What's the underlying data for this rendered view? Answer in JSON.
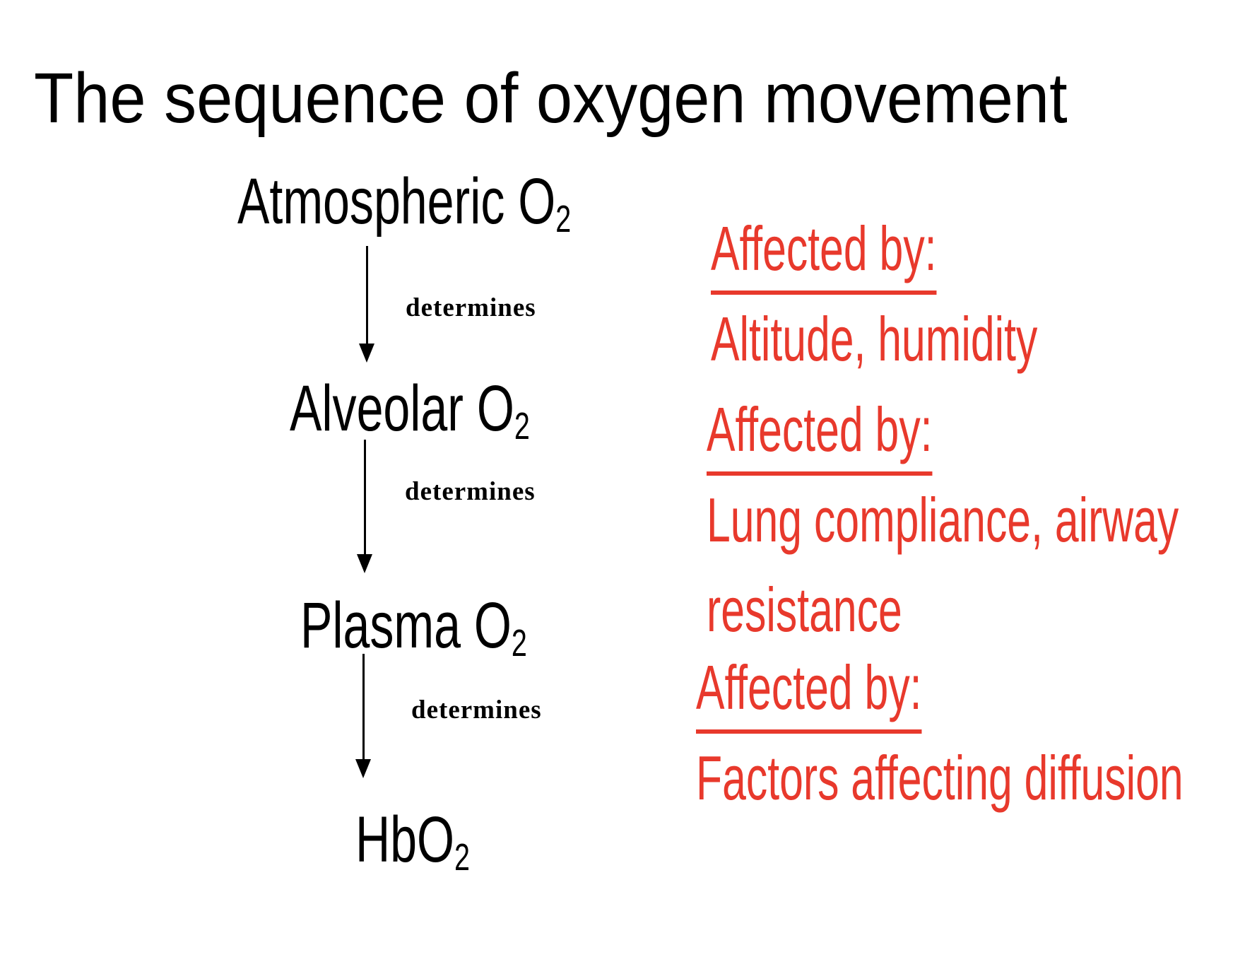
{
  "slide": {
    "title": "The sequence of oxygen movement",
    "colors": {
      "background": "#FFFFFF",
      "text": "#000000",
      "accent_red": "#E8392C"
    },
    "flow": {
      "nodes": [
        {
          "label": "Atmospheric O",
          "subscript": "2"
        },
        {
          "label": "Alveolar O",
          "subscript": "2"
        },
        {
          "label": "Plasma O",
          "subscript": "2"
        },
        {
          "label": "HbO",
          "subscript": "2"
        }
      ],
      "arrows": [
        {
          "label": "determines"
        },
        {
          "label": "determines"
        },
        {
          "label": "determines"
        }
      ]
    },
    "annotations": [
      {
        "heading": "Affected by:",
        "line1": "Altitude, humidity",
        "line2": ""
      },
      {
        "heading": "Affected by:",
        "line1": "Lung compliance, airway",
        "line2": "resistance"
      },
      {
        "heading": "Affected by:",
        "line1": "Factors affecting diffusion",
        "line2": ""
      }
    ]
  }
}
